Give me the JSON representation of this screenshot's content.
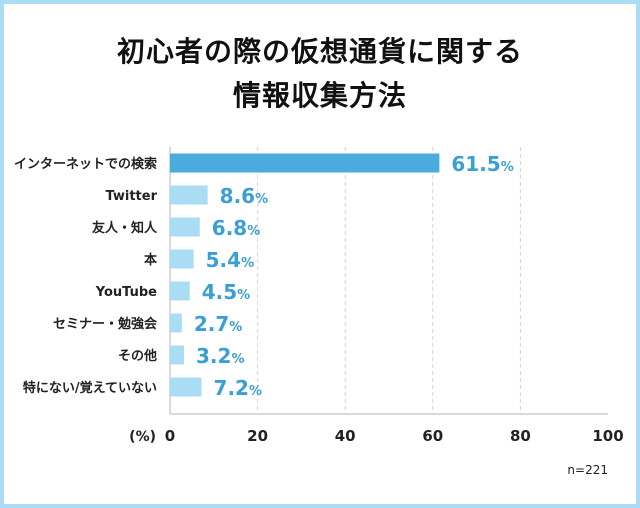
{
  "chart_data": {
    "type": "bar",
    "orientation": "horizontal",
    "title": [
      "初心者の際の仮想通貨に関する",
      "情報収集方法"
    ],
    "categories": [
      "インターネットでの検索",
      "Twitter",
      "友人・知人",
      "本",
      "YouTube",
      "セミナー・勉強会",
      "その他",
      "特にない/覚えていない"
    ],
    "values": [
      61.5,
      8.6,
      6.8,
      5.4,
      4.5,
      2.7,
      3.2,
      7.2
    ],
    "value_labels": [
      "61.5",
      "8.6",
      "6.8",
      "5.4",
      "4.5",
      "2.7",
      "3.2",
      "7.2"
    ],
    "value_suffix": "%",
    "xlabel": "(%)",
    "xlim": [
      0,
      100
    ],
    "xticks": [
      "0",
      "20",
      "40",
      "60",
      "80",
      "100"
    ],
    "grid": "vertical dashed",
    "note": "n=221",
    "colors": {
      "highlight": "#4aabdc",
      "bar": "#aadcf4",
      "label": "#3a9fd4",
      "border": "#aadcf4"
    }
  }
}
